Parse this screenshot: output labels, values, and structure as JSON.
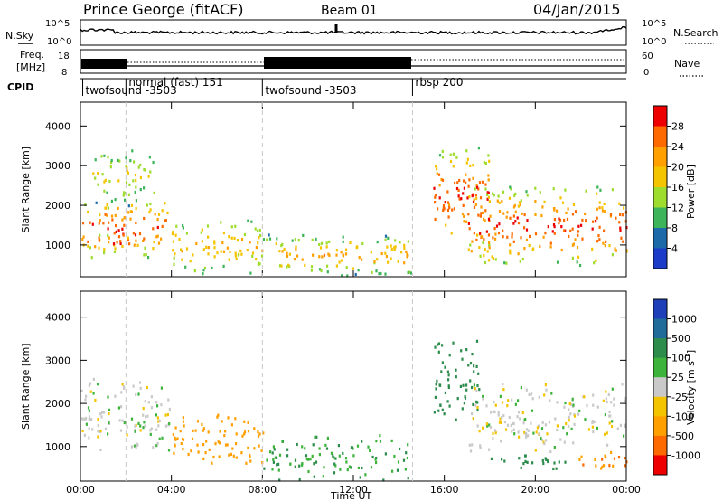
{
  "header": {
    "station": "Prince George (fitACF)",
    "beam": "Beam 01",
    "date": "04/Jan/2015"
  },
  "sky_panel": {
    "left_label": "N.Sky",
    "right_label": "N.Search",
    "left_ticks": [
      "10^5",
      "10^0"
    ],
    "right_ticks": [
      "10^5",
      "10^0"
    ]
  },
  "freq_panel": {
    "label_line1": "Freq.",
    "label_line2": "[MHz]",
    "left_ticks": [
      "18",
      "8"
    ],
    "right_label": "Nave",
    "right_ticks": [
      "60",
      "0"
    ]
  },
  "cpid": {
    "label": "CPID",
    "segments": [
      {
        "start_h": 0.1,
        "label": "twofsound -3503",
        "row": "low"
      },
      {
        "start_h": 2.0,
        "label": "normal (fast) 151",
        "row": "high"
      },
      {
        "start_h": 8.0,
        "label": "twofsound -3503",
        "row": "low"
      },
      {
        "start_h": 14.6,
        "label": "rbsp 200",
        "row": "high"
      }
    ]
  },
  "x_axis": {
    "label": "Time UT",
    "ticks": [
      "00:00",
      "04:00",
      "08:00",
      "12:00",
      "16:00",
      "20:00",
      "00:00"
    ],
    "range_h": [
      0,
      24
    ]
  },
  "y_axis": {
    "label": "Slant Range [km]",
    "ticks": [
      1000,
      2000,
      3000,
      4000
    ],
    "range_km": [
      200,
      4600
    ]
  },
  "power_scale": {
    "title": "Power [dB]",
    "labels": [
      "28",
      "24",
      "20",
      "16",
      "12",
      "8",
      "4"
    ],
    "colors": [
      "#ee0000",
      "#ff6a00",
      "#ff9f00",
      "#f5c400",
      "#9edc2e",
      "#3cb45a",
      "#1d6aa8",
      "#1b3bc8"
    ]
  },
  "velocity_scale": {
    "title": "Velocity [m s",
    "title_sup": "-1",
    "title_end": "]",
    "labels": [
      "1000",
      "500",
      "100",
      "25",
      "-25",
      "-100",
      "-500",
      "-1000"
    ],
    "colors": [
      "#1f3fb8",
      "#1f6b9a",
      "#2c8c4c",
      "#3cb43c",
      "#c9c9c9",
      "#f5c400",
      "#ff9f00",
      "#ff6a00",
      "#ee0000"
    ]
  },
  "chart_data": [
    {
      "type": "heatmap",
      "title": "Power [dB]",
      "xlabel": "Time UT",
      "ylabel": "Slant Range [km]",
      "xlim_h": [
        0,
        24
      ],
      "ylim_km": [
        200,
        4600
      ],
      "scatter_regions": [
        {
          "t0": 0.0,
          "t1": 3.8,
          "r0": 700,
          "r1": 2200,
          "peak_db": 28,
          "desc": "dense echoes"
        },
        {
          "t0": 0.1,
          "t1": 2.6,
          "r0": 900,
          "r1": 1300,
          "peak_db": 28
        },
        {
          "t0": 0.5,
          "t1": 3.3,
          "r0": 2000,
          "r1": 3500,
          "peak_db": 16
        },
        {
          "t0": 4.0,
          "t1": 8.0,
          "r0": 300,
          "r1": 1700,
          "peak_db": 20
        },
        {
          "t0": 8.0,
          "t1": 14.5,
          "r0": 250,
          "r1": 1300,
          "peak_db": 20
        },
        {
          "t0": 15.5,
          "t1": 18.0,
          "r0": 1000,
          "r1": 3500,
          "peak_db": 28
        },
        {
          "t0": 17.0,
          "t1": 24.0,
          "r0": 500,
          "r1": 2500,
          "peak_db": 28
        }
      ]
    },
    {
      "type": "heatmap",
      "title": "Velocity [m s-1]",
      "xlabel": "Time UT",
      "ylabel": "Slant Range [km]",
      "xlim_h": [
        0,
        24
      ],
      "ylim_km": [
        200,
        4600
      ],
      "scatter_regions": [
        {
          "t0": 0.0,
          "t1": 4.0,
          "r0": 900,
          "r1": 2600,
          "velocity": 0
        },
        {
          "t0": 4.0,
          "t1": 8.0,
          "r0": 600,
          "r1": 1800,
          "velocity": -300
        },
        {
          "t0": 8.0,
          "t1": 14.5,
          "r0": 250,
          "r1": 1300,
          "velocity": 100
        },
        {
          "t0": 15.5,
          "t1": 17.5,
          "r0": 1600,
          "r1": 3500,
          "velocity": 150
        },
        {
          "t0": 17.0,
          "t1": 24.0,
          "r0": 900,
          "r1": 2500,
          "velocity": 0
        },
        {
          "t0": 18.0,
          "t1": 21.5,
          "r0": 500,
          "r1": 900,
          "velocity": 150
        },
        {
          "t0": 21.5,
          "t1": 24.0,
          "r0": 500,
          "r1": 900,
          "velocity": -500
        }
      ]
    }
  ]
}
